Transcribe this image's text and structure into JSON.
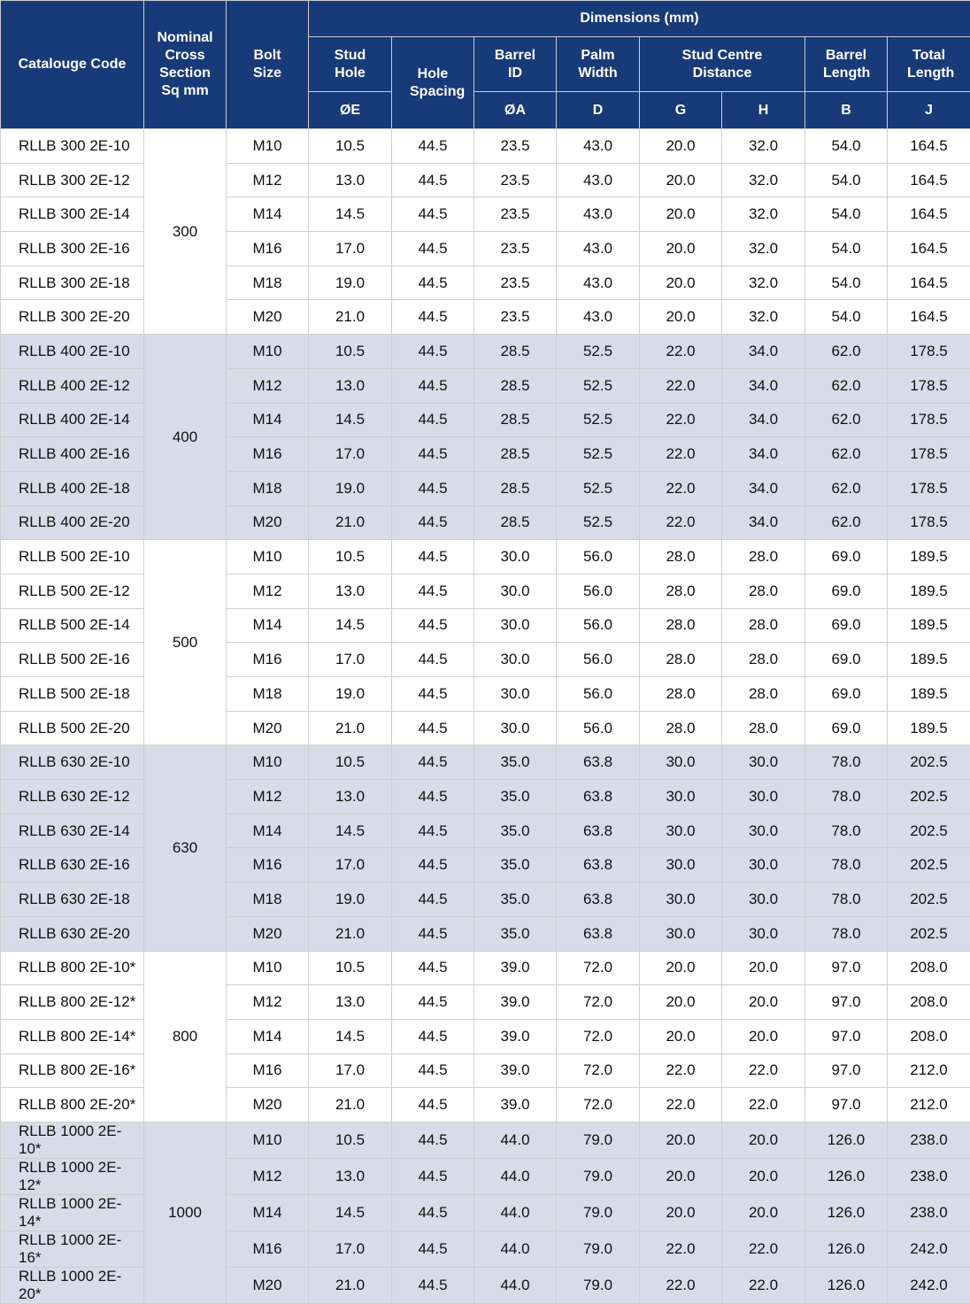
{
  "header": {
    "catalogue_code": "Catalouge Code",
    "nominal": "Nominal Cross Section Sq mm",
    "bolt_size": "Bolt Size",
    "dimensions": "Dimensions (mm)",
    "stud_hole": "Stud Hole",
    "hole_spacing": "Hole Spacing",
    "barrel_id": "Barrel ID",
    "palm_width": "Palm Width",
    "stud_centre": "Stud Centre Distance",
    "barrel_length": "Barrel Length",
    "total_length": "Total Length",
    "sym_e": "ØE",
    "sym_a": "ØA",
    "sym_d": "D",
    "sym_g": "G",
    "sym_h": "H",
    "sym_b": "B",
    "sym_j": "J"
  },
  "colors": {
    "header_bg": "#183a78",
    "shaded_row": "#d8dbe8"
  },
  "groups": [
    {
      "section": "300",
      "rows": [
        [
          "RLLB 300 2E-10",
          "M10",
          "10.5",
          "44.5",
          "23.5",
          "43.0",
          "20.0",
          "32.0",
          "54.0",
          "164.5"
        ],
        [
          "RLLB 300 2E-12",
          "M12",
          "13.0",
          "44.5",
          "23.5",
          "43.0",
          "20.0",
          "32.0",
          "54.0",
          "164.5"
        ],
        [
          "RLLB 300 2E-14",
          "M14",
          "14.5",
          "44.5",
          "23.5",
          "43.0",
          "20.0",
          "32.0",
          "54.0",
          "164.5"
        ],
        [
          "RLLB 300 2E-16",
          "M16",
          "17.0",
          "44.5",
          "23.5",
          "43.0",
          "20.0",
          "32.0",
          "54.0",
          "164.5"
        ],
        [
          "RLLB 300 2E-18",
          "M18",
          "19.0",
          "44.5",
          "23.5",
          "43.0",
          "20.0",
          "32.0",
          "54.0",
          "164.5"
        ],
        [
          "RLLB 300 2E-20",
          "M20",
          "21.0",
          "44.5",
          "23.5",
          "43.0",
          "20.0",
          "32.0",
          "54.0",
          "164.5"
        ]
      ]
    },
    {
      "section": "400",
      "rows": [
        [
          "RLLB 400 2E-10",
          "M10",
          "10.5",
          "44.5",
          "28.5",
          "52.5",
          "22.0",
          "34.0",
          "62.0",
          "178.5"
        ],
        [
          "RLLB 400 2E-12",
          "M12",
          "13.0",
          "44.5",
          "28.5",
          "52.5",
          "22.0",
          "34.0",
          "62.0",
          "178.5"
        ],
        [
          "RLLB 400 2E-14",
          "M14",
          "14.5",
          "44.5",
          "28.5",
          "52.5",
          "22.0",
          "34.0",
          "62.0",
          "178.5"
        ],
        [
          "RLLB 400 2E-16",
          "M16",
          "17.0",
          "44.5",
          "28.5",
          "52.5",
          "22.0",
          "34.0",
          "62.0",
          "178.5"
        ],
        [
          "RLLB 400 2E-18",
          "M18",
          "19.0",
          "44.5",
          "28.5",
          "52.5",
          "22.0",
          "34.0",
          "62.0",
          "178.5"
        ],
        [
          "RLLB 400 2E-20",
          "M20",
          "21.0",
          "44.5",
          "28.5",
          "52.5",
          "22.0",
          "34.0",
          "62.0",
          "178.5"
        ]
      ]
    },
    {
      "section": "500",
      "rows": [
        [
          "RLLB 500 2E-10",
          "M10",
          "10.5",
          "44.5",
          "30.0",
          "56.0",
          "28.0",
          "28.0",
          "69.0",
          "189.5"
        ],
        [
          "RLLB 500 2E-12",
          "M12",
          "13.0",
          "44.5",
          "30.0",
          "56.0",
          "28.0",
          "28.0",
          "69.0",
          "189.5"
        ],
        [
          "RLLB 500 2E-14",
          "M14",
          "14.5",
          "44.5",
          "30.0",
          "56.0",
          "28.0",
          "28.0",
          "69.0",
          "189.5"
        ],
        [
          "RLLB 500 2E-16",
          "M16",
          "17.0",
          "44.5",
          "30.0",
          "56.0",
          "28.0",
          "28.0",
          "69.0",
          "189.5"
        ],
        [
          "RLLB 500 2E-18",
          "M18",
          "19.0",
          "44.5",
          "30.0",
          "56.0",
          "28.0",
          "28.0",
          "69.0",
          "189.5"
        ],
        [
          "RLLB 500 2E-20",
          "M20",
          "21.0",
          "44.5",
          "30.0",
          "56.0",
          "28.0",
          "28.0",
          "69.0",
          "189.5"
        ]
      ]
    },
    {
      "section": "630",
      "rows": [
        [
          "RLLB 630 2E-10",
          "M10",
          "10.5",
          "44.5",
          "35.0",
          "63.8",
          "30.0",
          "30.0",
          "78.0",
          "202.5"
        ],
        [
          "RLLB 630 2E-12",
          "M12",
          "13.0",
          "44.5",
          "35.0",
          "63.8",
          "30.0",
          "30.0",
          "78.0",
          "202.5"
        ],
        [
          "RLLB 630 2E-14",
          "M14",
          "14.5",
          "44.5",
          "35.0",
          "63.8",
          "30.0",
          "30.0",
          "78.0",
          "202.5"
        ],
        [
          "RLLB 630 2E-16",
          "M16",
          "17.0",
          "44.5",
          "35.0",
          "63.8",
          "30.0",
          "30.0",
          "78.0",
          "202.5"
        ],
        [
          "RLLB 630 2E-18",
          "M18",
          "19.0",
          "44.5",
          "35.0",
          "63.8",
          "30.0",
          "30.0",
          "78.0",
          "202.5"
        ],
        [
          "RLLB 630 2E-20",
          "M20",
          "21.0",
          "44.5",
          "35.0",
          "63.8",
          "30.0",
          "30.0",
          "78.0",
          "202.5"
        ]
      ]
    },
    {
      "section": "800",
      "rows": [
        [
          "RLLB 800 2E-10*",
          "M10",
          "10.5",
          "44.5",
          "39.0",
          "72.0",
          "20.0",
          "20.0",
          "97.0",
          "208.0"
        ],
        [
          "RLLB 800 2E-12*",
          "M12",
          "13.0",
          "44.5",
          "39.0",
          "72.0",
          "20.0",
          "20.0",
          "97.0",
          "208.0"
        ],
        [
          "RLLB 800 2E-14*",
          "M14",
          "14.5",
          "44.5",
          "39.0",
          "72.0",
          "20.0",
          "20.0",
          "97.0",
          "208.0"
        ],
        [
          "RLLB 800 2E-16*",
          "M16",
          "17.0",
          "44.5",
          "39.0",
          "72.0",
          "22.0",
          "22.0",
          "97.0",
          "212.0"
        ],
        [
          "RLLB 800 2E-20*",
          "M20",
          "21.0",
          "44.5",
          "39.0",
          "72.0",
          "22.0",
          "22.0",
          "97.0",
          "212.0"
        ]
      ]
    },
    {
      "section": "1000",
      "rows": [
        [
          "RLLB 1000 2E-10*",
          "M10",
          "10.5",
          "44.5",
          "44.0",
          "79.0",
          "20.0",
          "20.0",
          "126.0",
          "238.0"
        ],
        [
          "RLLB 1000 2E-12*",
          "M12",
          "13.0",
          "44.5",
          "44.0",
          "79.0",
          "20.0",
          "20.0",
          "126.0",
          "238.0"
        ],
        [
          "RLLB 1000 2E-14*",
          "M14",
          "14.5",
          "44.5",
          "44.0",
          "79.0",
          "20.0",
          "20.0",
          "126.0",
          "238.0"
        ],
        [
          "RLLB 1000 2E-16*",
          "M16",
          "17.0",
          "44.5",
          "44.0",
          "79.0",
          "22.0",
          "22.0",
          "126.0",
          "242.0"
        ],
        [
          "RLLB 1000 2E-20*",
          "M20",
          "21.0",
          "44.5",
          "44.0",
          "79.0",
          "22.0",
          "22.0",
          "126.0",
          "242.0"
        ]
      ]
    }
  ]
}
